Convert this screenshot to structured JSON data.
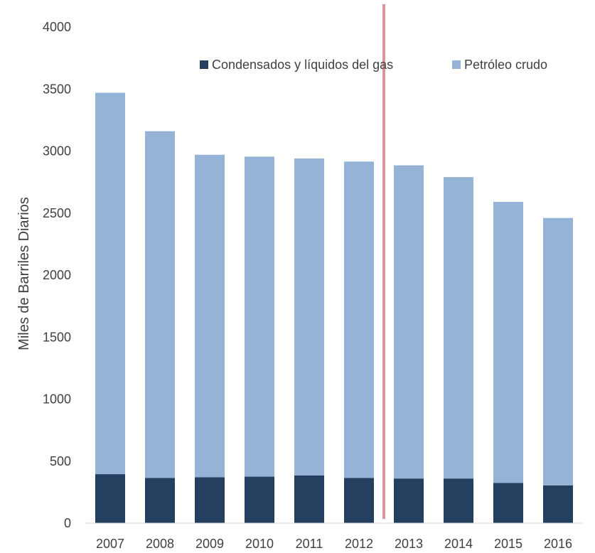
{
  "chart_data": {
    "type": "bar",
    "stacked": true,
    "title": "",
    "xlabel": "",
    "ylabel": "Miles de Barriles Diarios",
    "ylim": [
      0,
      4000
    ],
    "yticks": [
      0,
      500,
      1000,
      1500,
      2000,
      2500,
      3000,
      3500,
      4000
    ],
    "grid": false,
    "legend_position": "top",
    "categories": [
      "2007",
      "2008",
      "2009",
      "2010",
      "2011",
      "2012",
      "2013",
      "2014",
      "2015",
      "2016"
    ],
    "series": [
      {
        "name": "Condensados y líquidos del gas",
        "color": "#243f60",
        "values": [
          395,
          365,
          370,
          375,
          385,
          365,
          360,
          360,
          325,
          305
        ]
      },
      {
        "name": "Petróleo crudo",
        "color": "#95b3d7",
        "values": [
          3075,
          2795,
          2600,
          2580,
          2555,
          2550,
          2525,
          2430,
          2265,
          2155
        ]
      }
    ],
    "annotations": [
      {
        "type": "vertical-line",
        "between": [
          "2012",
          "2013"
        ],
        "color": "#d99694"
      }
    ]
  }
}
